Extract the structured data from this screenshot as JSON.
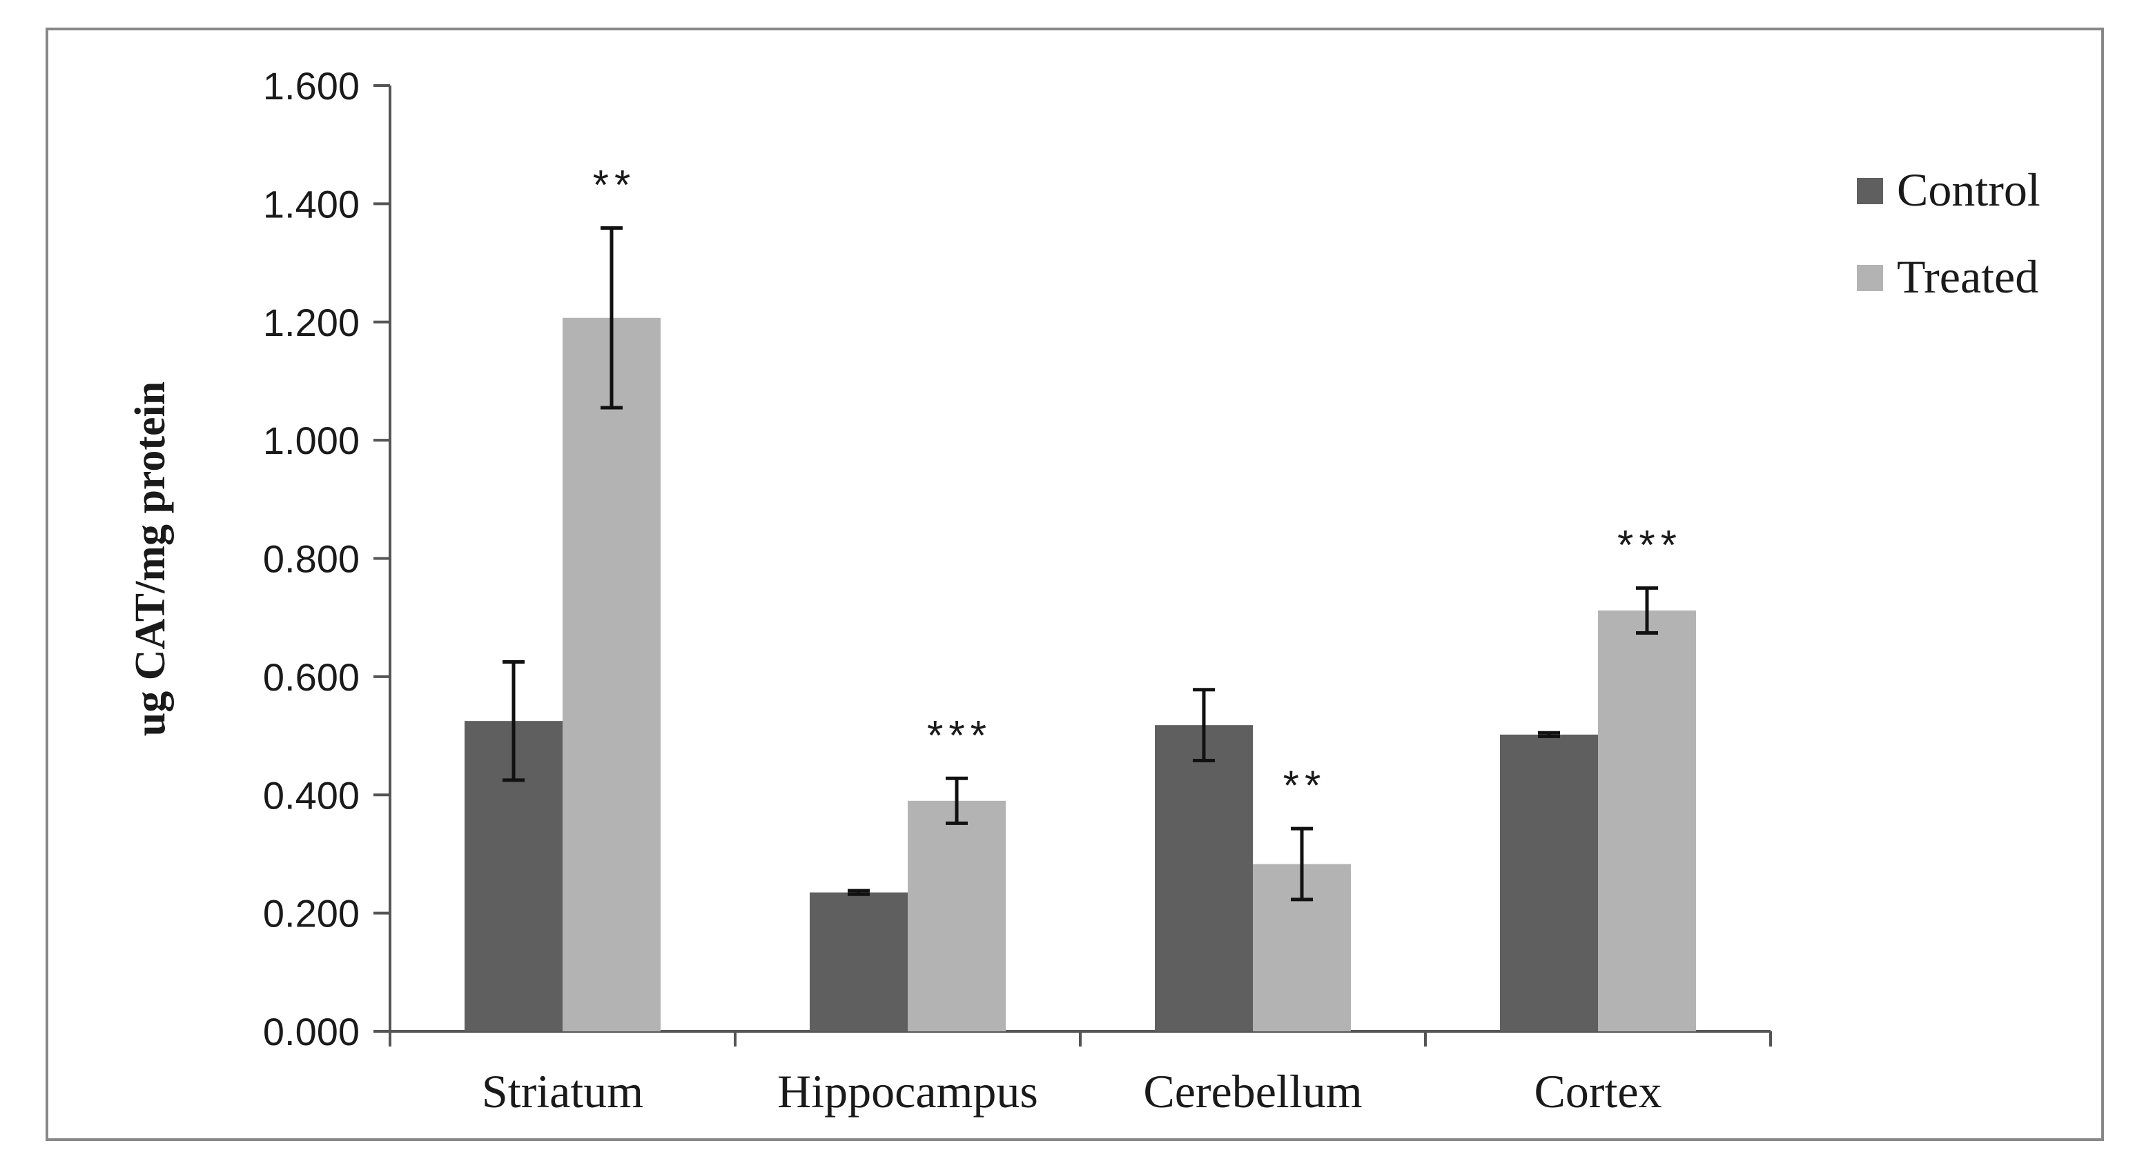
{
  "chart_data": {
    "type": "bar",
    "title": "",
    "xlabel": "",
    "ylabel": "ug CAT/mg protein",
    "ylim": [
      0,
      1.6
    ],
    "yticks": [
      0,
      0.2,
      0.4,
      0.6,
      0.8,
      1.0,
      1.2,
      1.4,
      1.6
    ],
    "ytick_labels": [
      "0.000",
      "0.200",
      "0.400",
      "0.600",
      "0.800",
      "1.000",
      "1.200",
      "1.400",
      "1.600"
    ],
    "grid": false,
    "legend_position": "right",
    "categories": [
      "Striatum",
      "Hippocampus",
      "Cerebellum",
      "Cortex"
    ],
    "series": [
      {
        "name": "Control",
        "color": "#5f5f5f",
        "values": [
          0.525,
          0.235,
          0.518,
          0.502
        ],
        "errors": [
          0.1,
          0.003,
          0.06,
          0.003
        ],
        "annotations": [
          "",
          "",
          "",
          ""
        ]
      },
      {
        "name": "Treated",
        "color": "#b3b3b3",
        "values": [
          1.207,
          0.39,
          0.283,
          0.712
        ],
        "errors": [
          0.152,
          0.038,
          0.06,
          0.038
        ],
        "annotations": [
          "**",
          "***",
          "**",
          "***"
        ]
      }
    ]
  }
}
